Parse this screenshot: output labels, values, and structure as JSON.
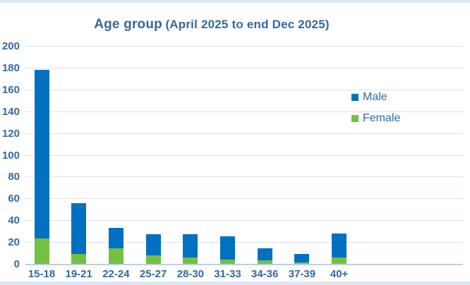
{
  "title": {
    "main": "Age group",
    "sub": "(April 2025 to end Dec 2025)"
  },
  "legend": {
    "male_label": "Male",
    "female_label": "Female"
  },
  "colors": {
    "male": "#0070c0",
    "female": "#74c043",
    "axis_text": "#35689e",
    "gridline": "#d9e2f0",
    "baseline": "#bccfe5",
    "edge_strip": "#dce8f4"
  },
  "chart_data": {
    "type": "bar",
    "stacked": true,
    "title": "Age group (April 2025 to end Dec 2025)",
    "categories": [
      "15-18",
      "19-21",
      "22-24",
      "25-27",
      "28-30",
      "31-33",
      "34-36",
      "37-39",
      "40+"
    ],
    "series": [
      {
        "name": "Male",
        "color": "#0070c0",
        "values": [
          155,
          47,
          19,
          19,
          21,
          21,
          11,
          8,
          22
        ]
      },
      {
        "name": "Female",
        "color": "#74c043",
        "values": [
          23,
          9,
          14,
          8,
          6,
          4,
          3,
          1,
          6
        ]
      }
    ],
    "totals": [
      178,
      56,
      33,
      27,
      27,
      25,
      14,
      9,
      28
    ],
    "xlabel": "",
    "ylabel": "",
    "ylim": [
      0,
      200
    ],
    "yticks": [
      0,
      20,
      40,
      60,
      80,
      100,
      120,
      140,
      160,
      180,
      200
    ],
    "grid": true,
    "legend_position": "upper-right"
  }
}
